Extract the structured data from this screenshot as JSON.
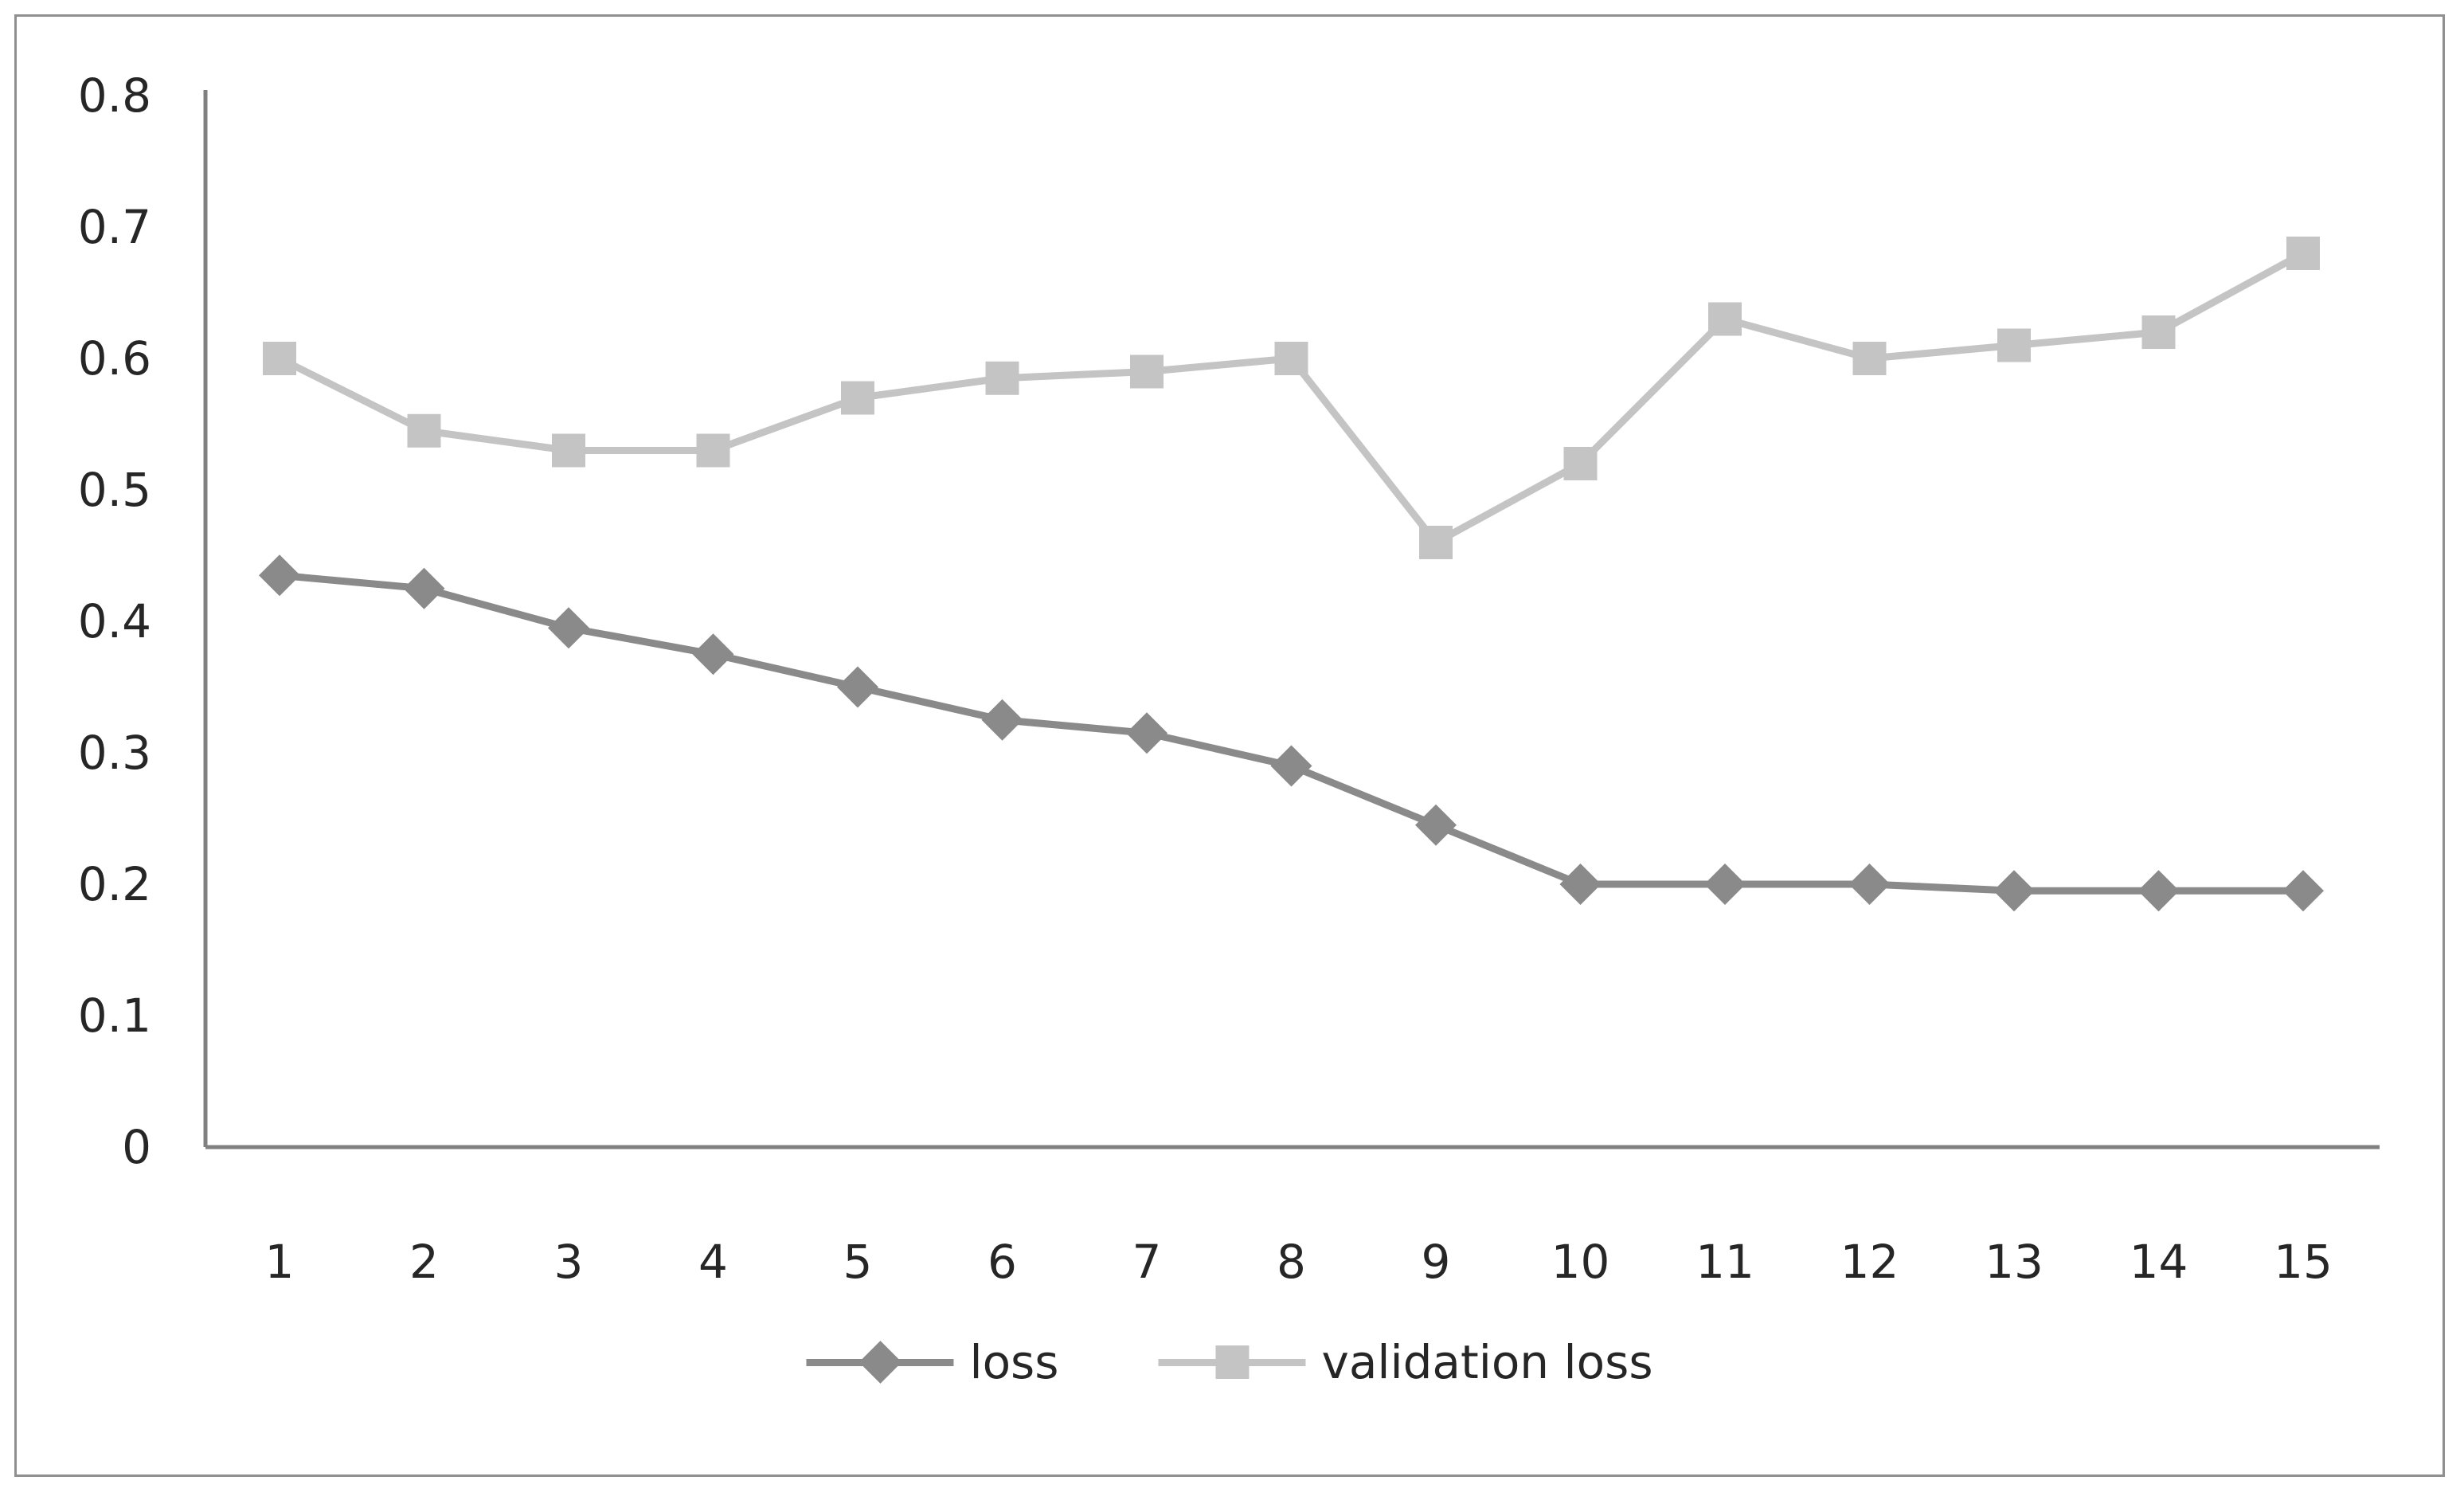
{
  "window": {
    "background": "#ffffff",
    "frame_border_color": "#8f8f8f"
  },
  "chart_data": {
    "type": "line",
    "title": "",
    "xlabel": "",
    "ylabel": "",
    "x": [
      1,
      2,
      3,
      4,
      5,
      6,
      7,
      8,
      9,
      10,
      11,
      12,
      13,
      14,
      15
    ],
    "series": [
      {
        "name": "loss",
        "marker": "diamond",
        "color": "#8a8a8a",
        "values": [
          0.435,
          0.425,
          0.395,
          0.375,
          0.35,
          0.325,
          0.315,
          0.29,
          0.245,
          0.2,
          0.2,
          0.2,
          0.195,
          0.195,
          0.195
        ]
      },
      {
        "name": "validation loss",
        "marker": "square",
        "color": "#c4c4c4",
        "values": [
          0.6,
          0.545,
          0.53,
          0.53,
          0.57,
          0.585,
          0.59,
          0.6,
          0.46,
          0.52,
          0.63,
          0.6,
          0.61,
          0.62,
          0.68
        ]
      }
    ],
    "ylim": [
      0,
      0.8
    ],
    "ytick_step": 0.1,
    "ytick_labels": [
      "0",
      "0.1",
      "0.2",
      "0.3",
      "0.4",
      "0.5",
      "0.6",
      "0.7",
      "0.8"
    ],
    "xtick_labels": [
      "1",
      "2",
      "3",
      "4",
      "5",
      "6",
      "7",
      "8",
      "9",
      "10",
      "11",
      "12",
      "13",
      "14",
      "15"
    ],
    "grid": false,
    "legend_position": "bottom",
    "axis_color": "#808080",
    "text_color": "#262626"
  }
}
